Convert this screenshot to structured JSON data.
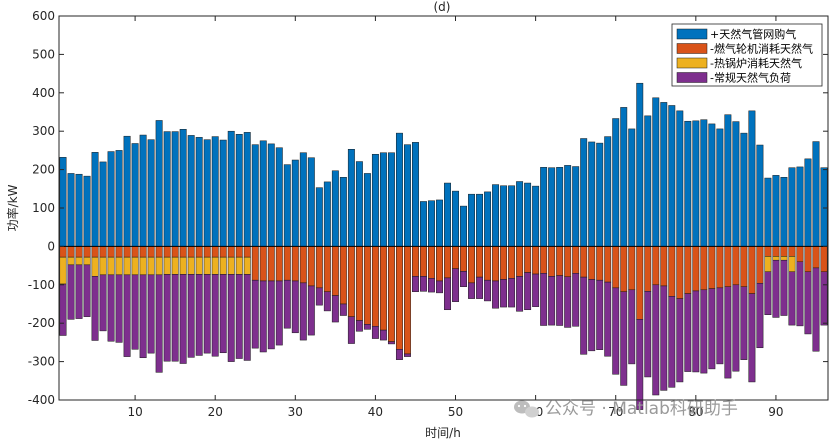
{
  "chart_data": {
    "type": "bar",
    "stacked": true,
    "title": "(d)",
    "xlabel": "时间/h",
    "ylabel": "功率/kW",
    "xlim": [
      0.5,
      96.5
    ],
    "ylim": [
      -400,
      600
    ],
    "xticks": [
      10,
      20,
      30,
      40,
      50,
      60,
      70,
      80,
      90
    ],
    "yticks": [
      -400,
      -300,
      -200,
      -100,
      0,
      100,
      200,
      300,
      400,
      500,
      600
    ],
    "grid": false,
    "legend_position": "top-right",
    "categories_from": 1,
    "series": [
      {
        "name": "+天然气管网购气",
        "color": "#0072BD",
        "values": [
          232,
          190,
          188,
          183,
          245,
          220,
          247,
          250,
          287,
          268,
          290,
          278,
          328,
          299,
          299,
          305,
          289,
          284,
          278,
          286,
          277,
          300,
          292,
          297,
          265,
          275,
          267,
          257,
          213,
          225,
          244,
          231,
          153,
          168,
          197,
          180,
          253,
          221,
          190,
          240,
          244,
          244,
          295,
          265,
          271,
          117,
          119,
          121,
          165,
          144,
          105,
          136,
          136,
          142,
          161,
          158,
          158,
          169,
          165,
          157,
          206,
          205,
          206,
          211,
          208,
          281,
          272,
          269,
          286,
          333,
          362,
          306,
          425,
          340,
          387,
          375,
          367,
          353,
          326,
          327,
          330,
          319,
          306,
          343,
          325,
          295,
          353,
          264,
          178,
          185,
          180,
          205,
          207,
          228,
          273,
          205
        ]
      },
      {
        "name": "-燃气轮机消耗天然气",
        "color": "#D95319",
        "values": [
          -28,
          -28,
          -28,
          -28,
          -28,
          -28,
          -28,
          -28,
          -28,
          -28,
          -28,
          -28,
          -28,
          -28,
          -28,
          -28,
          -28,
          -28,
          -28,
          -28,
          -28,
          -28,
          -28,
          -28,
          -88,
          -90,
          -90,
          -90,
          -88,
          -90,
          -95,
          -103,
          -108,
          -118,
          -128,
          -150,
          -183,
          -193,
          -203,
          -208,
          -218,
          -248,
          -268,
          -280,
          -78,
          -78,
          -83,
          -90,
          -82,
          -58,
          -65,
          -95,
          -80,
          -88,
          -90,
          -86,
          -83,
          -78,
          -68,
          -72,
          -70,
          -78,
          -76,
          -79,
          -70,
          -80,
          -86,
          -88,
          -93,
          -108,
          -118,
          -113,
          -190,
          -117,
          -100,
          -103,
          -130,
          -136,
          -123,
          -116,
          -113,
          -110,
          -108,
          -105,
          -100,
          -105,
          -123,
          -96,
          -26,
          -26,
          -26,
          -26,
          -40,
          -66,
          -56,
          -66
        ]
      },
      {
        "name": "-热锅炉消耗天然气",
        "color": "#EDB120",
        "values": [
          -70,
          -20,
          -20,
          -20,
          -50,
          -46,
          -46,
          -46,
          -46,
          -46,
          -46,
          -46,
          -46,
          -45,
          -45,
          -45,
          -45,
          -45,
          -45,
          -45,
          -45,
          -45,
          -45,
          -45,
          0,
          0,
          0,
          0,
          0,
          0,
          0,
          0,
          0,
          0,
          0,
          0,
          0,
          0,
          0,
          0,
          0,
          0,
          0,
          0,
          0,
          0,
          0,
          0,
          0,
          0,
          0,
          0,
          0,
          0,
          0,
          0,
          0,
          0,
          0,
          0,
          0,
          0,
          0,
          0,
          0,
          0,
          0,
          0,
          0,
          0,
          0,
          0,
          0,
          0,
          0,
          0,
          0,
          0,
          0,
          0,
          0,
          0,
          0,
          0,
          0,
          0,
          0,
          0,
          -40,
          -10,
          -10,
          -40,
          0,
          0,
          0,
          0
        ]
      },
      {
        "name": "-常规天然气负荷",
        "color": "#7E2F8E",
        "values": [
          -134,
          -142,
          -140,
          -135,
          -167,
          -146,
          -173,
          -176,
          -213,
          -194,
          -216,
          -204,
          -254,
          -226,
          -226,
          -232,
          -216,
          -211,
          -205,
          -213,
          -204,
          -227,
          -219,
          -224,
          -177,
          -185,
          -177,
          -167,
          -125,
          -135,
          -149,
          -128,
          -45,
          -50,
          -69,
          -30,
          -70,
          -28,
          -13,
          -32,
          -26,
          -6,
          -27,
          -7,
          -40,
          -39,
          -36,
          -31,
          -83,
          -86,
          -40,
          -41,
          -56,
          -54,
          -71,
          -72,
          -75,
          -91,
          -97,
          -85,
          -136,
          -127,
          -130,
          -132,
          -138,
          -201,
          -186,
          -181,
          -193,
          -225,
          -244,
          -193,
          -235,
          -223,
          -287,
          -272,
          -237,
          -217,
          -203,
          -211,
          -217,
          -209,
          -198,
          -238,
          -225,
          -190,
          -230,
          -168,
          -112,
          -149,
          -144,
          -139,
          -167,
          -162,
          -217,
          -139
        ]
      }
    ]
  },
  "watermark": {
    "icon": "wechat-icon",
    "text": "公众号 · Matlab科研助手"
  }
}
